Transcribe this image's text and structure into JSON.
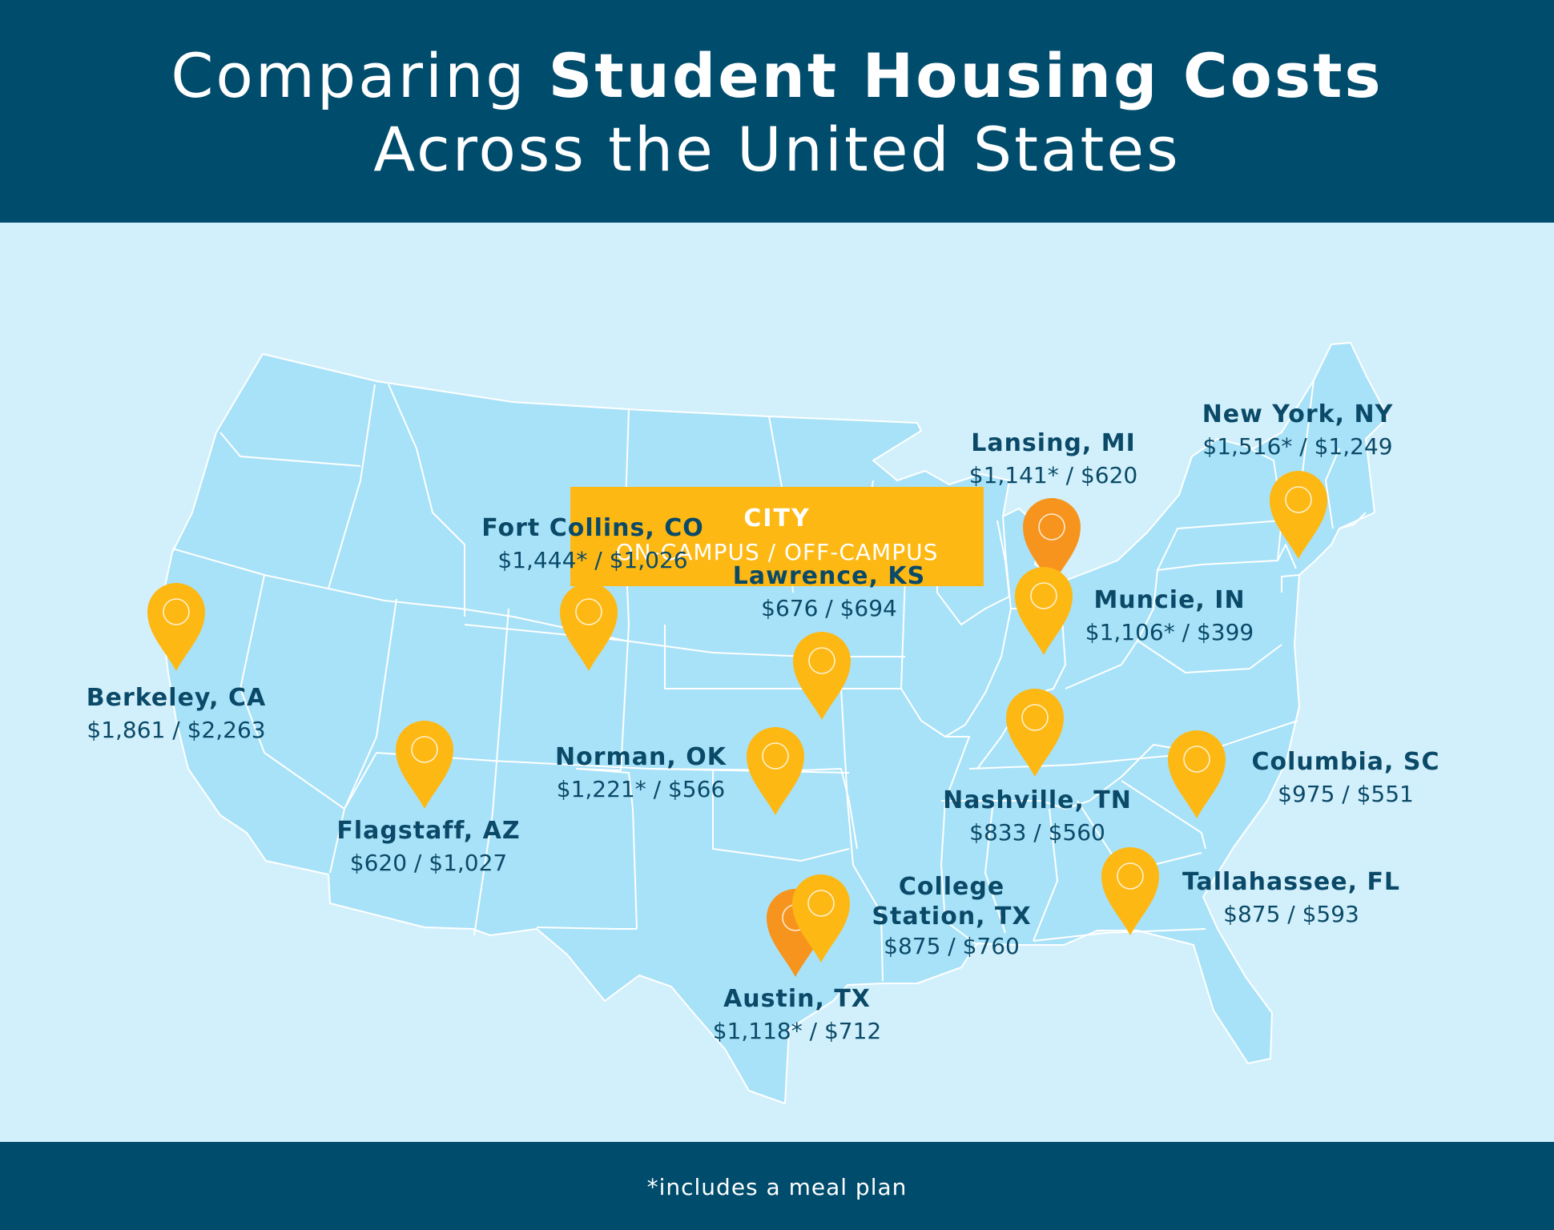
{
  "title": {
    "prefix": "Comparing ",
    "bold": "Student Housing Costs",
    "line2": "Across the United States"
  },
  "legend": {
    "title": "CITY",
    "subtitle": "ON-CAMPUS / OFF-CAMPUS"
  },
  "colors": {
    "header": "#004c6d",
    "background": "#d2f0fb",
    "land": "#a8e2f8",
    "pin": "#fdb813",
    "pin_overlap": "#f7941d",
    "label_text": "#0a4a68"
  },
  "pin_icon": "map-marker-icon",
  "cities": [
    {
      "name": "Berkeley, CA",
      "cost": "$1,861 / $2,263"
    },
    {
      "name": "Fort Collins, CO",
      "cost": "$1,444* / $1,026"
    },
    {
      "name": "Lawrence, KS",
      "cost": "$676 / $694"
    },
    {
      "name": "Lansing, MI",
      "cost": "$1,141* / $620"
    },
    {
      "name": "New York, NY",
      "cost": "$1,516* / $1,249"
    },
    {
      "name": "Muncie, IN",
      "cost": "$1,106* / $399"
    },
    {
      "name": "Flagstaff, AZ",
      "cost": "$620 / $1,027"
    },
    {
      "name": "Norman, OK",
      "cost": "$1,221* / $566"
    },
    {
      "name": "Nashville, TN",
      "cost": "$833 / $560"
    },
    {
      "name": "Columbia, SC",
      "cost": "$975 / $551"
    },
    {
      "name": "College Station, TX",
      "name_line1": "College",
      "name_line2": "Station, TX",
      "cost": "$875 / $760"
    },
    {
      "name": "Tallahassee, FL",
      "cost": "$875 / $593"
    },
    {
      "name": "Austin, TX",
      "cost": "$1,118* / $712"
    }
  ],
  "footnote": "*includes a meal plan"
}
